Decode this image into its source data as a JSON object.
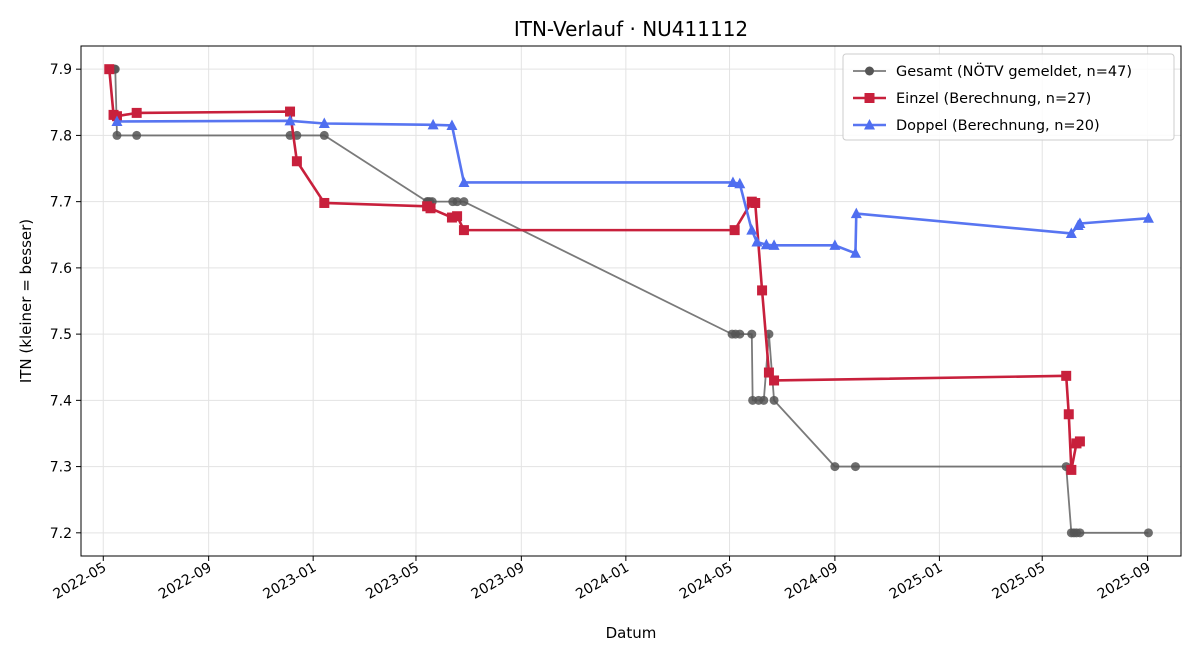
{
  "chart_data": {
    "type": "line",
    "title": "ITN-Verlauf · NU411112",
    "xlabel": "Datum",
    "ylabel": "ITN  (kleiner = besser)",
    "x_type": "date",
    "xlim": [
      "2022-04-05",
      "2025-10-10"
    ],
    "ylim": [
      7.165,
      7.935
    ],
    "x_ticks": [
      "2022-05-01",
      "2022-09-01",
      "2023-01-01",
      "2023-05-01",
      "2023-09-01",
      "2024-01-01",
      "2024-05-01",
      "2024-09-01",
      "2025-01-01",
      "2025-05-01",
      "2025-09-01"
    ],
    "x_tick_labels": [
      "2022-05",
      "2022-09",
      "2023-01",
      "2023-05",
      "2023-09",
      "2024-01",
      "2024-05",
      "2024-09",
      "2025-01",
      "2025-05",
      "2025-09"
    ],
    "y_ticks": [
      7.2,
      7.3,
      7.4,
      7.5,
      7.6,
      7.7,
      7.8,
      7.9
    ],
    "y_tick_labels": [
      "7.2",
      "7.3",
      "7.4",
      "7.5",
      "7.6",
      "7.7",
      "7.8",
      "7.9"
    ],
    "grid": true,
    "legend_position": "top-right",
    "series": [
      {
        "name": "Gesamt (NÖTV gemeldet, n=47)",
        "color": "#555555",
        "marker": "circle",
        "points": [
          [
            "2022-05-08",
            7.9
          ],
          [
            "2022-05-14",
            7.9
          ],
          [
            "2022-05-15",
            7.9
          ],
          [
            "2022-05-17",
            7.8
          ],
          [
            "2022-06-09",
            7.8
          ],
          [
            "2022-12-05",
            7.8
          ],
          [
            "2022-12-13",
            7.8
          ],
          [
            "2023-01-14",
            7.8
          ],
          [
            "2023-05-14",
            7.7
          ],
          [
            "2023-05-15",
            7.7
          ],
          [
            "2023-05-17",
            7.7
          ],
          [
            "2023-05-20",
            7.7
          ],
          [
            "2023-06-13",
            7.7
          ],
          [
            "2023-06-18",
            7.7
          ],
          [
            "2023-06-26",
            7.7
          ],
          [
            "2024-05-04",
            7.5
          ],
          [
            "2024-05-08",
            7.5
          ],
          [
            "2024-05-13",
            7.5
          ],
          [
            "2024-05-27",
            7.5
          ],
          [
            "2024-05-28",
            7.4
          ],
          [
            "2024-06-04",
            7.4
          ],
          [
            "2024-06-10",
            7.4
          ],
          [
            "2024-06-16",
            7.5
          ],
          [
            "2024-06-22",
            7.4
          ],
          [
            "2024-09-01",
            7.3
          ],
          [
            "2024-09-25",
            7.3
          ],
          [
            "2025-05-29",
            7.3
          ],
          [
            "2025-06-04",
            7.2
          ],
          [
            "2025-06-07",
            7.2
          ],
          [
            "2025-06-10",
            7.2
          ],
          [
            "2025-06-14",
            7.2
          ],
          [
            "2025-09-02",
            7.2
          ]
        ]
      },
      {
        "name": "Einzel (Berechnung, n=27)",
        "color": "#c8203c",
        "marker": "square",
        "points": [
          [
            "2022-05-08",
            7.9
          ],
          [
            "2022-05-13",
            7.831
          ],
          [
            "2022-05-17",
            7.829
          ],
          [
            "2022-06-09",
            7.834
          ],
          [
            "2022-12-05",
            7.836
          ],
          [
            "2022-12-13",
            7.761
          ],
          [
            "2023-01-14",
            7.698
          ],
          [
            "2023-05-14",
            7.693
          ],
          [
            "2023-05-18",
            7.69
          ],
          [
            "2023-06-12",
            7.676
          ],
          [
            "2023-06-18",
            7.678
          ],
          [
            "2023-06-26",
            7.657
          ],
          [
            "2024-05-07",
            7.657
          ],
          [
            "2024-05-27",
            7.7
          ],
          [
            "2024-05-31",
            7.698
          ],
          [
            "2024-06-08",
            7.566
          ],
          [
            "2024-06-16",
            7.442
          ],
          [
            "2024-06-22",
            7.43
          ],
          [
            "2025-05-29",
            7.437
          ],
          [
            "2025-06-01",
            7.379
          ],
          [
            "2025-06-04",
            7.295
          ],
          [
            "2025-06-10",
            7.335
          ],
          [
            "2025-06-14",
            7.338
          ]
        ]
      },
      {
        "name": "Doppel (Berechnung, n=20)",
        "color": "#4f6ef0",
        "marker": "triangle",
        "points": [
          [
            "2022-05-17",
            7.821
          ],
          [
            "2022-12-05",
            7.822
          ],
          [
            "2023-01-14",
            7.818
          ],
          [
            "2023-05-21",
            7.816
          ],
          [
            "2023-06-12",
            7.815
          ],
          [
            "2023-06-26",
            7.729
          ],
          [
            "2024-05-05",
            7.729
          ],
          [
            "2024-05-13",
            7.727
          ],
          [
            "2024-05-27",
            7.657
          ],
          [
            "2024-06-02",
            7.639
          ],
          [
            "2024-06-13",
            7.635
          ],
          [
            "2024-06-22",
            7.634
          ],
          [
            "2024-09-01",
            7.634
          ],
          [
            "2024-09-25",
            7.622
          ],
          [
            "2024-09-26",
            7.682
          ],
          [
            "2025-06-04",
            7.652
          ],
          [
            "2025-06-12",
            7.664
          ],
          [
            "2025-06-14",
            7.667
          ],
          [
            "2025-09-02",
            7.675
          ]
        ]
      }
    ]
  }
}
